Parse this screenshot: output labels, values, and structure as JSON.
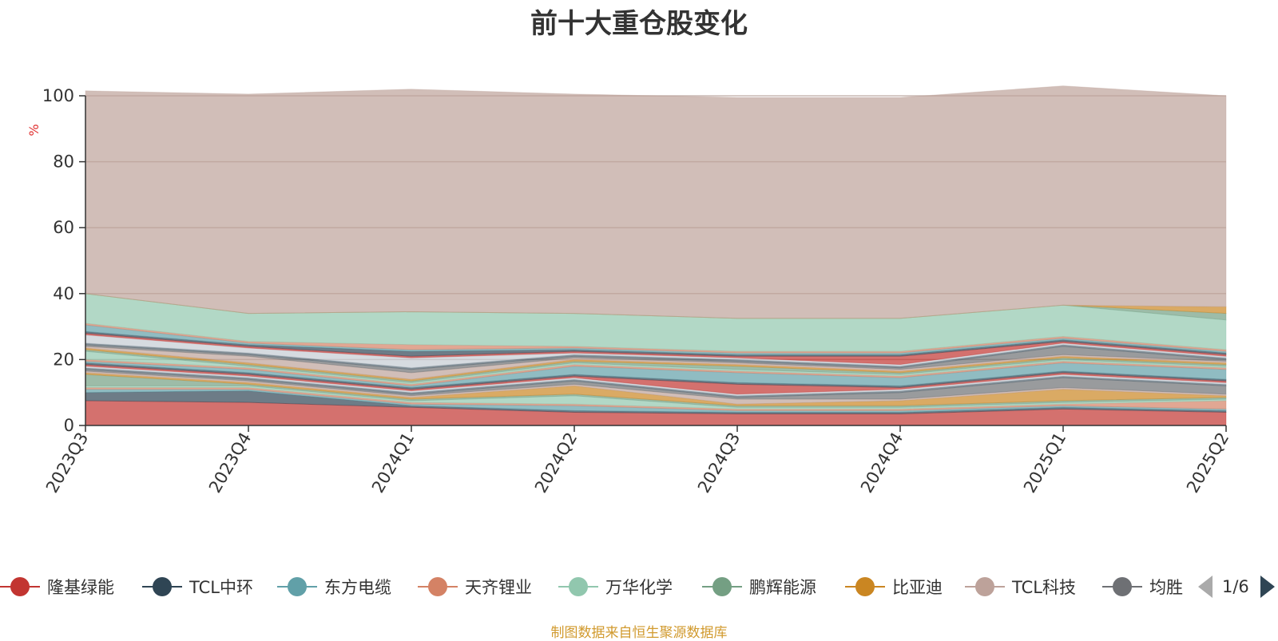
{
  "chart_data": {
    "type": "area",
    "stacked": true,
    "title": "前十大重仓股变化",
    "ylabel": "%",
    "ylim": [
      0,
      100
    ],
    "y_ticks": [
      0,
      20,
      40,
      60,
      80,
      100
    ],
    "grid": true,
    "legend_position": "bottom",
    "categories": [
      "2023Q3",
      "2023Q4",
      "2024Q1",
      "2024Q2",
      "2024Q3",
      "2024Q4",
      "2025Q1",
      "2025Q2"
    ],
    "series": [
      {
        "name": "隆基绿能",
        "color": "#c23531",
        "values": [
          7.5,
          7.0,
          5.5,
          4.0,
          3.5,
          3.5,
          5.0,
          4.0
        ]
      },
      {
        "name": "TCL中环",
        "color": "#2f4554",
        "values": [
          2.5,
          3.5,
          0.5,
          0.5,
          0.5,
          0.5,
          0.5,
          0.5
        ]
      },
      {
        "name": "东方电缆",
        "color": "#61a0a8",
        "values": [
          1.0,
          0.5,
          0.5,
          1.5,
          0.5,
          0.5,
          0.5,
          0.5
        ]
      },
      {
        "name": "天齐锂业",
        "color": "#d48265",
        "values": [
          0.5,
          0.5,
          0.5,
          0.5,
          0.5,
          0.5,
          0.5,
          2.5
        ]
      },
      {
        "name": "万华化学",
        "color": "#91c7ae",
        "values": [
          0.5,
          0.5,
          0.5,
          2.5,
          0.5,
          0.5,
          0.5,
          0.5
        ]
      },
      {
        "name": "鹏辉能源",
        "color": "#749f83",
        "values": [
          3.5,
          0.5,
          0.5,
          0.5,
          0.5,
          0.5,
          0.5,
          0.5
        ]
      },
      {
        "name": "比亚迪",
        "color": "#ca8622",
        "values": [
          0.5,
          0.5,
          0.5,
          2.5,
          0.5,
          1.5,
          3.5,
          0.5
        ]
      },
      {
        "name": "TCL科技",
        "color": "#bda29a",
        "values": [
          0.5,
          0.5,
          0.5,
          0.5,
          1.5,
          0.5,
          0.5,
          0.5
        ]
      },
      {
        "name": "均胜",
        "color": "#6e7074",
        "values": [
          0.5,
          0.5,
          0.5,
          1.0,
          0.5,
          2.0,
          3.0,
          2.5
        ]
      },
      {
        "name": "",
        "color": "#546570",
        "values": [
          0.5,
          0.5,
          0.5,
          0.5,
          0.5,
          0.5,
          0.5,
          0.5
        ]
      },
      {
        "name": "",
        "color": "#c4ccd3",
        "values": [
          0.5,
          0.5,
          0.5,
          0.5,
          0.5,
          0.5,
          0.5,
          0.5
        ]
      },
      {
        "name": "",
        "color": "#c23531",
        "values": [
          0.5,
          0.5,
          0.5,
          0.5,
          3.0,
          0.5,
          0.5,
          0.5
        ]
      },
      {
        "name": "",
        "color": "#2f4554",
        "values": [
          0.5,
          0.5,
          0.5,
          0.5,
          0.5,
          0.5,
          0.5,
          0.5
        ]
      },
      {
        "name": "",
        "color": "#61a0a8",
        "values": [
          0.5,
          1.0,
          0.5,
          2.5,
          3.0,
          2.5,
          2.5,
          3.0
        ]
      },
      {
        "name": "",
        "color": "#d48265",
        "values": [
          0.5,
          0.5,
          0.5,
          0.5,
          0.5,
          0.5,
          0.5,
          0.5
        ]
      },
      {
        "name": "",
        "color": "#91c7ae",
        "values": [
          2.5,
          0.5,
          0.5,
          0.5,
          0.5,
          0.5,
          0.5,
          0.5
        ]
      },
      {
        "name": "",
        "color": "#749f83",
        "values": [
          0.5,
          0.5,
          0.5,
          0.5,
          1.0,
          0.5,
          0.5,
          0.5
        ]
      },
      {
        "name": "",
        "color": "#ca8622",
        "values": [
          0.5,
          0.5,
          0.5,
          0.5,
          0.5,
          0.5,
          0.5,
          0.5
        ]
      },
      {
        "name": "",
        "color": "#bda29a",
        "values": [
          0.5,
          2.0,
          2.0,
          0.5,
          0.5,
          0.5,
          0.5,
          0.5
        ]
      },
      {
        "name": "",
        "color": "#6e7074",
        "values": [
          0.5,
          0.5,
          1.0,
          0.5,
          0.5,
          0.5,
          2.5,
          0.5
        ]
      },
      {
        "name": "",
        "color": "#546570",
        "values": [
          0.5,
          0.5,
          0.5,
          0.5,
          0.5,
          0.5,
          0.5,
          0.5
        ]
      },
      {
        "name": "",
        "color": "#c4ccd3",
        "values": [
          2.5,
          1.5,
          3.0,
          0.5,
          0.5,
          0.5,
          0.5,
          0.5
        ]
      },
      {
        "name": "",
        "color": "#c23531",
        "values": [
          0.5,
          0.5,
          0.5,
          0.5,
          0.5,
          2.5,
          0.5,
          0.5
        ]
      },
      {
        "name": "",
        "color": "#2f4554",
        "values": [
          0.5,
          0.5,
          1.5,
          0.5,
          0.5,
          0.5,
          0.5,
          0.5
        ]
      },
      {
        "name": "",
        "color": "#61a0a8",
        "values": [
          2.0,
          0.5,
          0.5,
          0.5,
          0.5,
          0.5,
          0.5,
          0.5
        ]
      },
      {
        "name": "",
        "color": "#d48265",
        "values": [
          0.5,
          0.5,
          1.5,
          0.5,
          0.5,
          0.5,
          0.5,
          0.5
        ]
      },
      {
        "name": "",
        "color": "#91c7ae",
        "values": [
          9.0,
          8.5,
          10.0,
          10.0,
          10.0,
          10.0,
          9.5,
          9.0
        ]
      },
      {
        "name": "",
        "color": "#749f83",
        "values": [
          0.0,
          0.0,
          0.0,
          0.0,
          0.0,
          0.0,
          0.0,
          2.0
        ]
      },
      {
        "name": "",
        "color": "#ca8622",
        "values": [
          0.0,
          0.0,
          0.0,
          0.0,
          0.0,
          0.0,
          0.0,
          2.0
        ]
      },
      {
        "name": "",
        "color": "#bda29a",
        "values": [
          61.5,
          66.5,
          67.5,
          66.5,
          67.0,
          67.0,
          66.5,
          64.0
        ]
      }
    ]
  },
  "legend": {
    "items": [
      {
        "label": "隆基绿能",
        "color": "#c23531"
      },
      {
        "label": "TCL中环",
        "color": "#2f4554"
      },
      {
        "label": "东方电缆",
        "color": "#61a0a8"
      },
      {
        "label": "天齐锂业",
        "color": "#d48265"
      },
      {
        "label": "万华化学",
        "color": "#91c7ae"
      },
      {
        "label": "鹏辉能源",
        "color": "#749f83"
      },
      {
        "label": "比亚迪",
        "color": "#ca8622"
      },
      {
        "label": "TCL科技",
        "color": "#bda29a"
      },
      {
        "label": "均胜",
        "color": "#6e7074"
      }
    ],
    "page_indicator": "1/6",
    "prev_icon": "triangle-left-icon",
    "next_icon": "triangle-right-icon"
  },
  "source_note": "制图数据来自恒生聚源数据库"
}
